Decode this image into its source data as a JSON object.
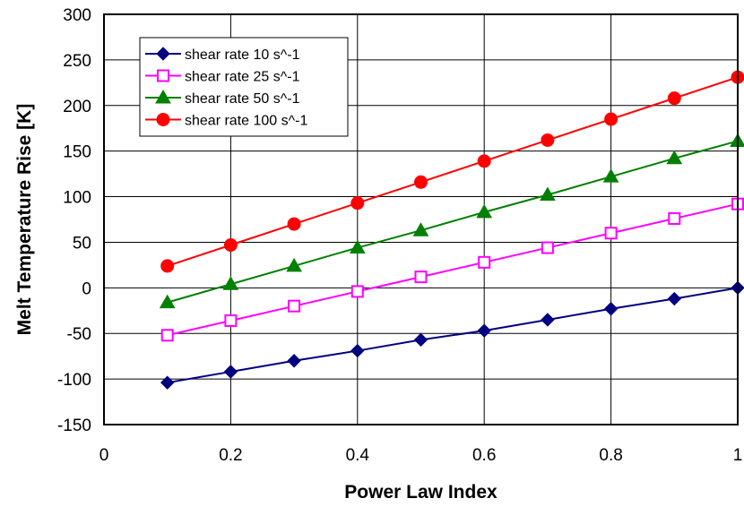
{
  "chart_data": {
    "type": "line",
    "xlabel": "Power Law Index",
    "ylabel": "Melt Temperature Rise [K]",
    "xlim": [
      0,
      1
    ],
    "ylim": [
      -150,
      300
    ],
    "xticks": [
      0,
      0.2,
      0.4,
      0.6,
      0.8,
      1
    ],
    "yticks": [
      -150,
      -100,
      -50,
      0,
      50,
      100,
      150,
      200,
      250,
      300
    ],
    "grid": true,
    "legend_position": "top-left",
    "x": [
      0.1,
      0.2,
      0.3,
      0.4,
      0.5,
      0.6,
      0.7,
      0.8,
      0.9,
      1.0
    ],
    "series": [
      {
        "name": "shear rate 10 s^-1",
        "color": "#000080",
        "marker": "diamond",
        "values": [
          -104,
          -92,
          -80,
          -69,
          -57,
          -47,
          -35,
          -23,
          -12,
          0
        ]
      },
      {
        "name": "shear rate 25 s^-1",
        "color": "#ff00ff",
        "marker": "square-open",
        "values": [
          -52,
          -36,
          -20,
          -4,
          12,
          28,
          44,
          60,
          76,
          92
        ]
      },
      {
        "name": "shear rate 50 s^-1",
        "color": "#008000",
        "marker": "triangle",
        "values": [
          -16,
          4,
          24,
          44,
          63,
          83,
          102,
          122,
          142,
          161
        ]
      },
      {
        "name": "shear rate 100 s^-1",
        "color": "#ff0000",
        "marker": "circle",
        "values": [
          24,
          47,
          70,
          93,
          116,
          139,
          162,
          185,
          208,
          231
        ]
      }
    ]
  }
}
